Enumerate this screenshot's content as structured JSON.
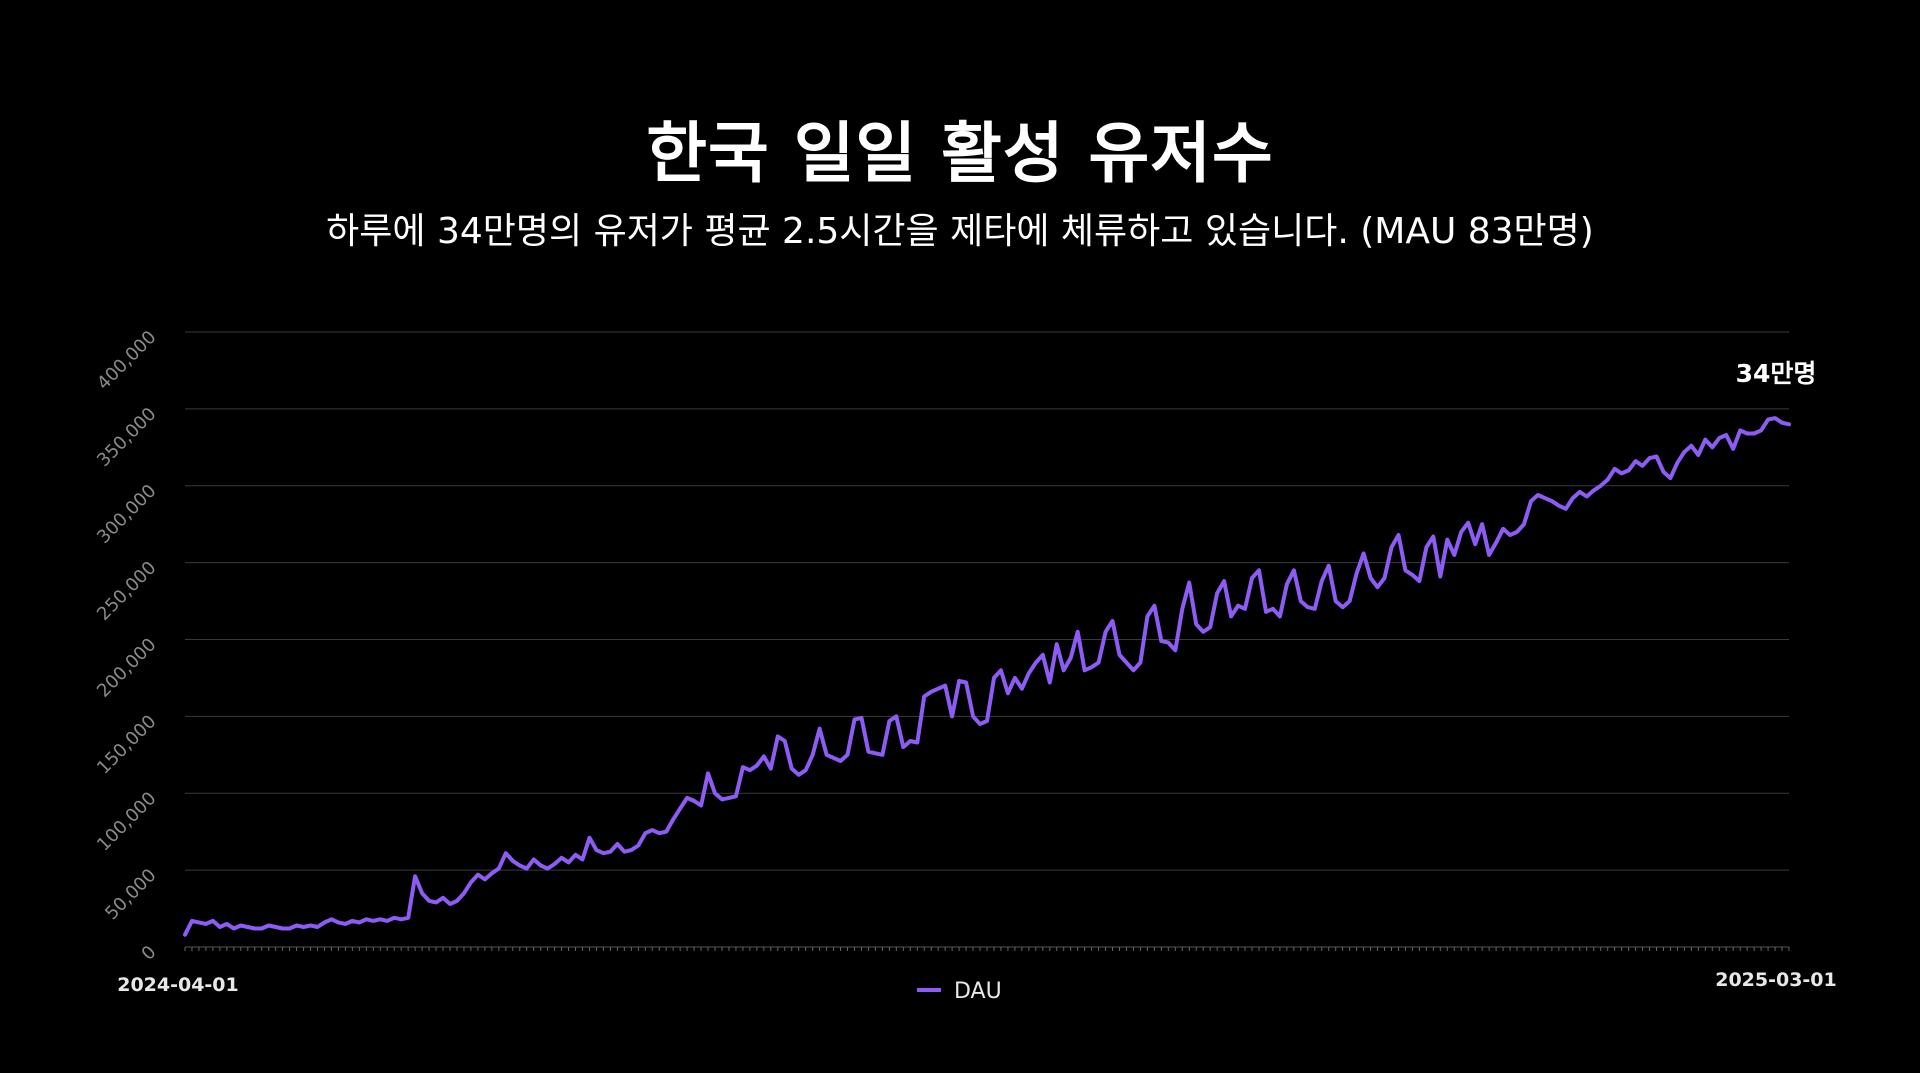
{
  "title": "한국 일일 활성 유저수",
  "subtitle": "하루에 34만명의 유저가 평균 2.5시간을 제타에 체류하고 있습니다. (MAU 83만명)",
  "colors": {
    "line": "#8c5cf5",
    "grid": "#3a3a3a",
    "background": "#000000"
  },
  "chart_data": {
    "type": "line",
    "ylim": [
      0,
      400000
    ],
    "yticks": [
      "0",
      "50,000",
      "100,000",
      "150,000",
      "200,000",
      "250,000",
      "300,000",
      "350,000",
      "400,000"
    ],
    "x_start": "2024-04-01",
    "x_end": "2025-03-01",
    "x_labels": [
      "2024-04-01",
      "2025-03-01"
    ],
    "grid": true,
    "legend_placement": "bottom-center",
    "end_annotation": "34만명",
    "series": [
      {
        "name": "DAU",
        "values": [
          8000,
          17000,
          16000,
          15000,
          17000,
          13000,
          15000,
          12000,
          14000,
          13000,
          12000,
          12000,
          14000,
          13000,
          12000,
          12000,
          14000,
          13000,
          14000,
          13000,
          16000,
          18000,
          16000,
          15000,
          17000,
          16000,
          18000,
          17000,
          18000,
          17000,
          19000,
          18000,
          19000,
          46000,
          35000,
          30000,
          29000,
          32000,
          28000,
          30000,
          35000,
          42000,
          47000,
          44000,
          48000,
          51000,
          61000,
          56000,
          53000,
          51000,
          57000,
          53000,
          51000,
          54000,
          58000,
          55000,
          60000,
          57000,
          71000,
          63000,
          61000,
          62000,
          67000,
          62000,
          63000,
          66000,
          74000,
          76000,
          74000,
          75000,
          83000,
          90000,
          97000,
          95000,
          92000,
          113000,
          100000,
          96000,
          97000,
          98000,
          117000,
          115000,
          118000,
          124000,
          116000,
          137000,
          134000,
          116000,
          112000,
          115000,
          125000,
          142000,
          125000,
          123000,
          121000,
          125000,
          148000,
          149000,
          127000,
          126000,
          125000,
          147000,
          150000,
          130000,
          134000,
          133000,
          163000,
          166000,
          168000,
          170000,
          150000,
          173000,
          172000,
          150000,
          145000,
          147000,
          175000,
          180000,
          165000,
          175000,
          168000,
          178000,
          185000,
          190000,
          172000,
          197000,
          180000,
          188000,
          205000,
          180000,
          182000,
          185000,
          205000,
          212000,
          190000,
          185000,
          180000,
          185000,
          215000,
          222000,
          199000,
          198000,
          193000,
          220000,
          237000,
          210000,
          205000,
          208000,
          230000,
          238000,
          215000,
          222000,
          220000,
          240000,
          245000,
          218000,
          220000,
          215000,
          236000,
          245000,
          225000,
          221000,
          220000,
          238000,
          248000,
          225000,
          221000,
          225000,
          243000,
          256000,
          240000,
          234000,
          240000,
          260000,
          268000,
          245000,
          242000,
          238000,
          260000,
          267000,
          241000,
          265000,
          255000,
          270000,
          276000,
          262000,
          275000,
          255000,
          263000,
          272000,
          268000,
          270000,
          275000,
          290000,
          294000,
          292000,
          290000,
          287000,
          285000,
          292000,
          296000,
          293000,
          297000,
          300000,
          304000,
          311000,
          308000,
          310000,
          316000,
          313000,
          318000,
          319000,
          309000,
          305000,
          315000,
          322000,
          326000,
          320000,
          330000,
          325000,
          331000,
          333000,
          324000,
          336000,
          334000,
          334000,
          336000,
          343000,
          344000,
          341000,
          340000
        ]
      }
    ]
  }
}
